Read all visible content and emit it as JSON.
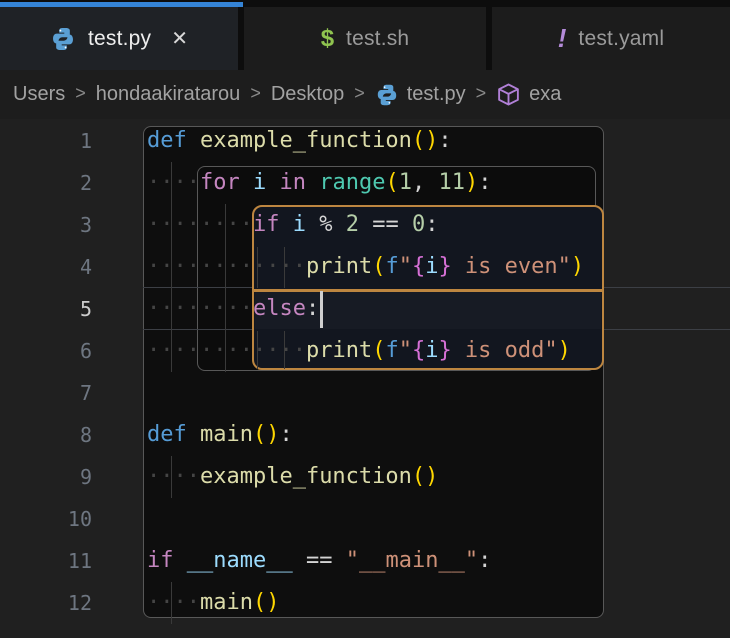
{
  "window": {
    "app": "Visual Studio Code",
    "theme": "dark"
  },
  "colors": {
    "accent_blue": "#3584d6",
    "scope_border_gray": "#585858",
    "active_scope_border_orange": "#bd8640",
    "editor_outside_bg": "#202020",
    "block_bg": "#0e0e0e",
    "active_block_bg": "#12161f",
    "string": "#ce9178",
    "keyword": "#569cd6",
    "control": "#c586c0",
    "function": "#dcdcaa",
    "number": "#b5cea8",
    "variable": "#9cdcfe",
    "bracket": "#ffd700",
    "builtin": "#4ec9b0"
  },
  "tabs": [
    {
      "label": "test.py",
      "icon": "python-icon",
      "active": true,
      "close_glyph": "✕"
    },
    {
      "label": "test.sh",
      "icon": "shell-icon",
      "icon_glyph": "$",
      "active": false
    },
    {
      "label": "test.yaml",
      "icon": "yaml-icon",
      "icon_glyph": "!",
      "active": false
    }
  ],
  "breadcrumb": {
    "separator": ">",
    "segments": [
      "Users",
      "hondaakiratarou",
      "Desktop"
    ],
    "file": {
      "label": "test.py",
      "icon": "python-icon"
    },
    "symbol": {
      "label": "exa",
      "icon": "symbol-method-cube-icon",
      "note": "truncated at window edge"
    }
  },
  "editor": {
    "language": "python",
    "active_line": 5,
    "cursor": {
      "line": 5,
      "after_text": "else:"
    },
    "lines": [
      {
        "n": 1,
        "tokens": [
          [
            "def",
            "kw"
          ],
          [
            " ",
            "pl"
          ],
          [
            "example_function",
            "fn"
          ],
          [
            "(",
            "br"
          ],
          [
            ")",
            "br"
          ],
          [
            ":",
            "pl"
          ]
        ]
      },
      {
        "n": 2,
        "tokens": [
          [
            "    ",
            "ws"
          ],
          [
            "for",
            "ctrl"
          ],
          [
            " ",
            "pl"
          ],
          [
            "i",
            "var"
          ],
          [
            " ",
            "pl"
          ],
          [
            "in",
            "ctrl"
          ],
          [
            " ",
            "pl"
          ],
          [
            "range",
            "cls"
          ],
          [
            "(",
            "br"
          ],
          [
            "1",
            "num"
          ],
          [
            ",",
            "pl"
          ],
          [
            " ",
            "pl"
          ],
          [
            "11",
            "num"
          ],
          [
            ")",
            "br"
          ],
          [
            ":",
            "pl"
          ]
        ]
      },
      {
        "n": 3,
        "tokens": [
          [
            "        ",
            "ws"
          ],
          [
            "if",
            "ctrl"
          ],
          [
            " ",
            "pl"
          ],
          [
            "i",
            "var"
          ],
          [
            " ",
            "pl"
          ],
          [
            "%",
            "pl"
          ],
          [
            " ",
            "pl"
          ],
          [
            "2",
            "num"
          ],
          [
            " ",
            "pl"
          ],
          [
            "==",
            "pl"
          ],
          [
            " ",
            "pl"
          ],
          [
            "0",
            "num"
          ],
          [
            ":",
            "pl"
          ]
        ]
      },
      {
        "n": 4,
        "tokens": [
          [
            "            ",
            "ws"
          ],
          [
            "print",
            "fn"
          ],
          [
            "(",
            "br"
          ],
          [
            "f",
            "kw"
          ],
          [
            "\"",
            "str"
          ],
          [
            "{",
            "fbr"
          ],
          [
            "i",
            "var"
          ],
          [
            "}",
            "fbr"
          ],
          [
            " is even",
            "str"
          ],
          [
            "\"",
            "str"
          ],
          [
            ")",
            "br"
          ]
        ]
      },
      {
        "n": 5,
        "tokens": [
          [
            "        ",
            "ws"
          ],
          [
            "else",
            "ctrl"
          ],
          [
            ":",
            "pl"
          ]
        ]
      },
      {
        "n": 6,
        "tokens": [
          [
            "            ",
            "ws"
          ],
          [
            "print",
            "fn"
          ],
          [
            "(",
            "br"
          ],
          [
            "f",
            "kw"
          ],
          [
            "\"",
            "str"
          ],
          [
            "{",
            "fbr"
          ],
          [
            "i",
            "var"
          ],
          [
            "}",
            "fbr"
          ],
          [
            " is odd",
            "str"
          ],
          [
            "\"",
            "str"
          ],
          [
            ")",
            "br"
          ]
        ]
      },
      {
        "n": 7,
        "tokens": []
      },
      {
        "n": 8,
        "tokens": [
          [
            "def",
            "kw"
          ],
          [
            " ",
            "pl"
          ],
          [
            "main",
            "fn"
          ],
          [
            "(",
            "br"
          ],
          [
            ")",
            "br"
          ],
          [
            ":",
            "pl"
          ]
        ]
      },
      {
        "n": 9,
        "tokens": [
          [
            "    ",
            "ws"
          ],
          [
            "example_function",
            "fn"
          ],
          [
            "(",
            "br"
          ],
          [
            ")",
            "br"
          ]
        ]
      },
      {
        "n": 10,
        "tokens": []
      },
      {
        "n": 11,
        "tokens": [
          [
            "if",
            "ctrl"
          ],
          [
            " ",
            "pl"
          ],
          [
            "__name__",
            "var"
          ],
          [
            " ",
            "pl"
          ],
          [
            "==",
            "pl"
          ],
          [
            " ",
            "pl"
          ],
          [
            "\"__main__\"",
            "str"
          ],
          [
            ":",
            "pl"
          ]
        ]
      },
      {
        "n": 12,
        "tokens": [
          [
            "    ",
            "ws"
          ],
          [
            "main",
            "fn"
          ],
          [
            "(",
            "br"
          ],
          [
            ")",
            "br"
          ]
        ]
      }
    ]
  }
}
